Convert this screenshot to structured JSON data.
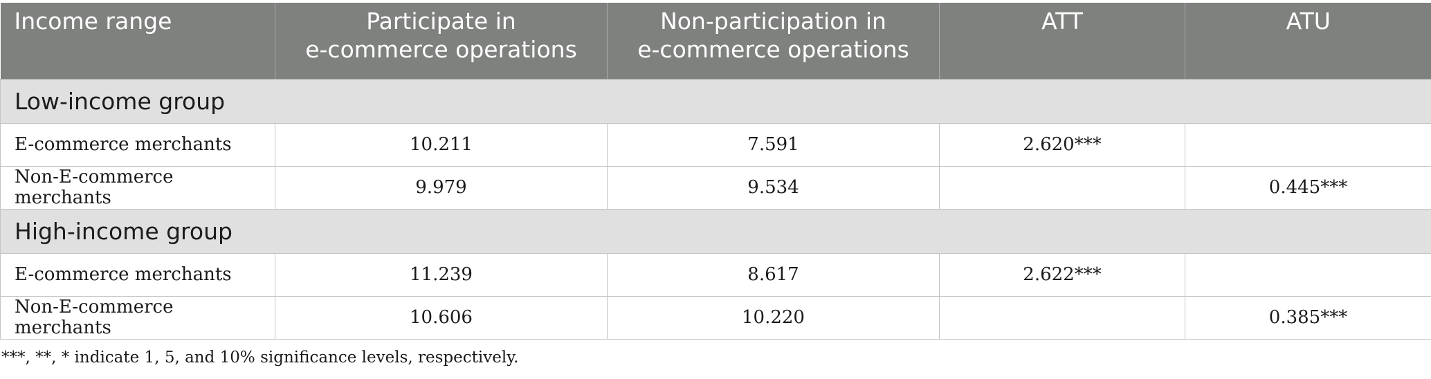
{
  "table": {
    "headers": [
      [
        "Income range"
      ],
      [
        "Participate in",
        "e-commerce operations"
      ],
      [
        "Non-participation in",
        "e-commerce operations"
      ],
      [
        "ATT"
      ],
      [
        "ATU"
      ]
    ],
    "groups": [
      {
        "label": "Low-income group",
        "rows": [
          [
            "E-commerce merchants",
            "10.211",
            "7.591",
            "2.620***",
            ""
          ],
          [
            "Non-E-commerce merchants",
            "9.979",
            "9.534",
            "",
            "0.445***"
          ]
        ]
      },
      {
        "label": "High-income group",
        "rows": [
          [
            "E-commerce merchants",
            "11.239",
            "8.617",
            "2.622***",
            ""
          ],
          [
            "Non-E-commerce merchants",
            "10.606",
            "10.220",
            "",
            "0.385***"
          ]
        ]
      }
    ]
  },
  "footnote": "***, **, * indicate 1, 5, and 10% significance levels, respectively.",
  "colors": {
    "header_bg": "#7f817f",
    "group_bg": "#e1e0e1",
    "border": "#c4c4c4"
  }
}
